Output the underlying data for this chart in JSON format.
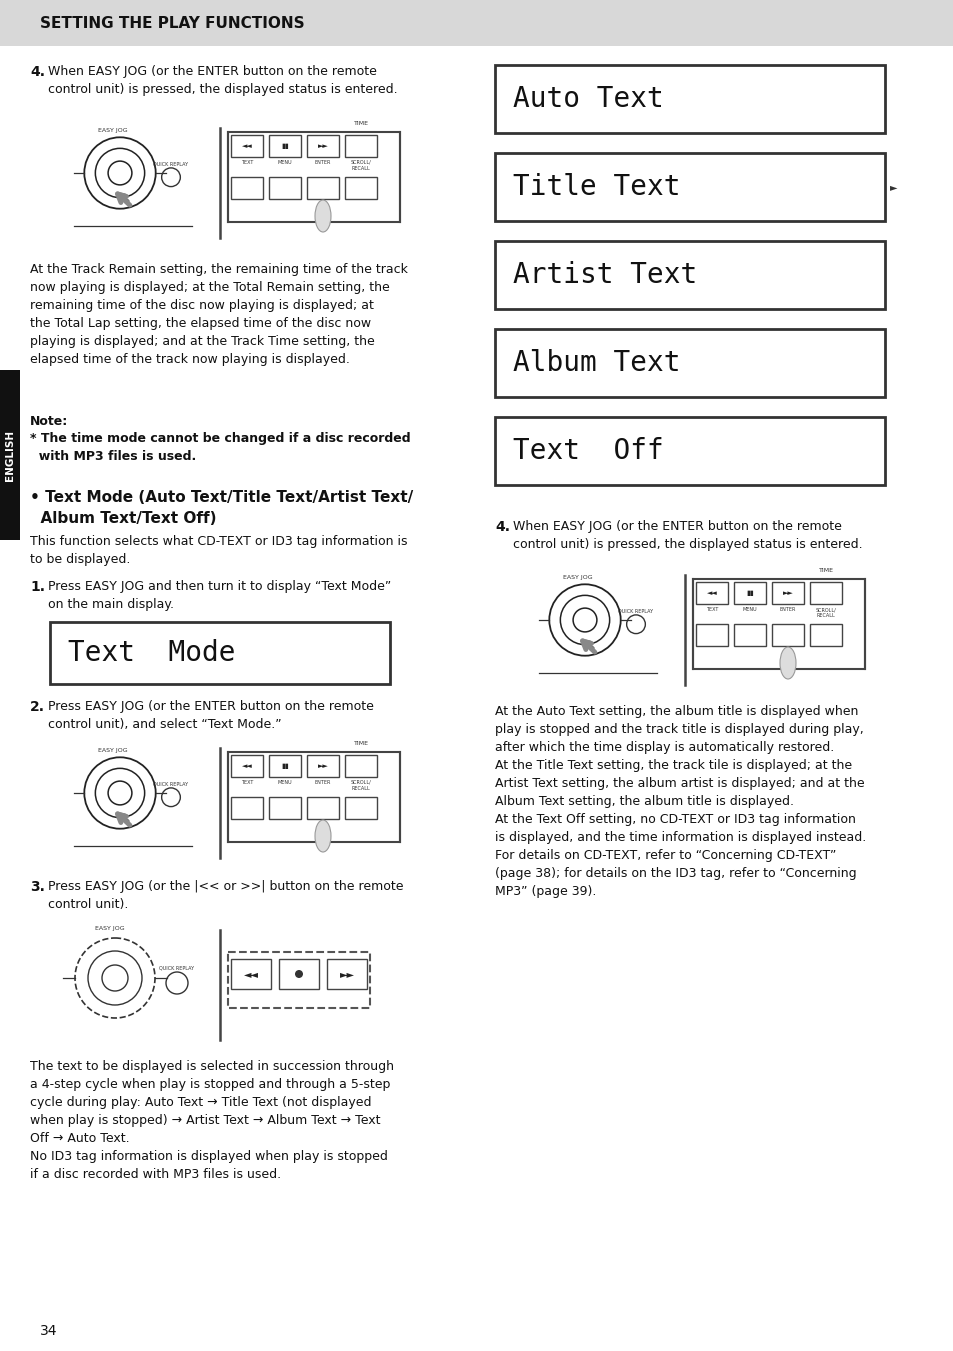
{
  "page_bg": "#ffffff",
  "header_bg": "#d8d8d8",
  "header_text": "SETTING THE PLAY FUNCTIONS",
  "sidebar_bg": "#111111",
  "sidebar_text": "ENGLISH",
  "page_number": "34",
  "lcd_bg": "#ffffff",
  "lcd_border": "#333333",
  "lcd_text_color": "#111111",
  "lcd_displays": [
    "Auto Text",
    "Title Text",
    "Artist Text",
    "Album Text",
    "Text  Off"
  ],
  "lcd_text_mode": "Text  Mode"
}
